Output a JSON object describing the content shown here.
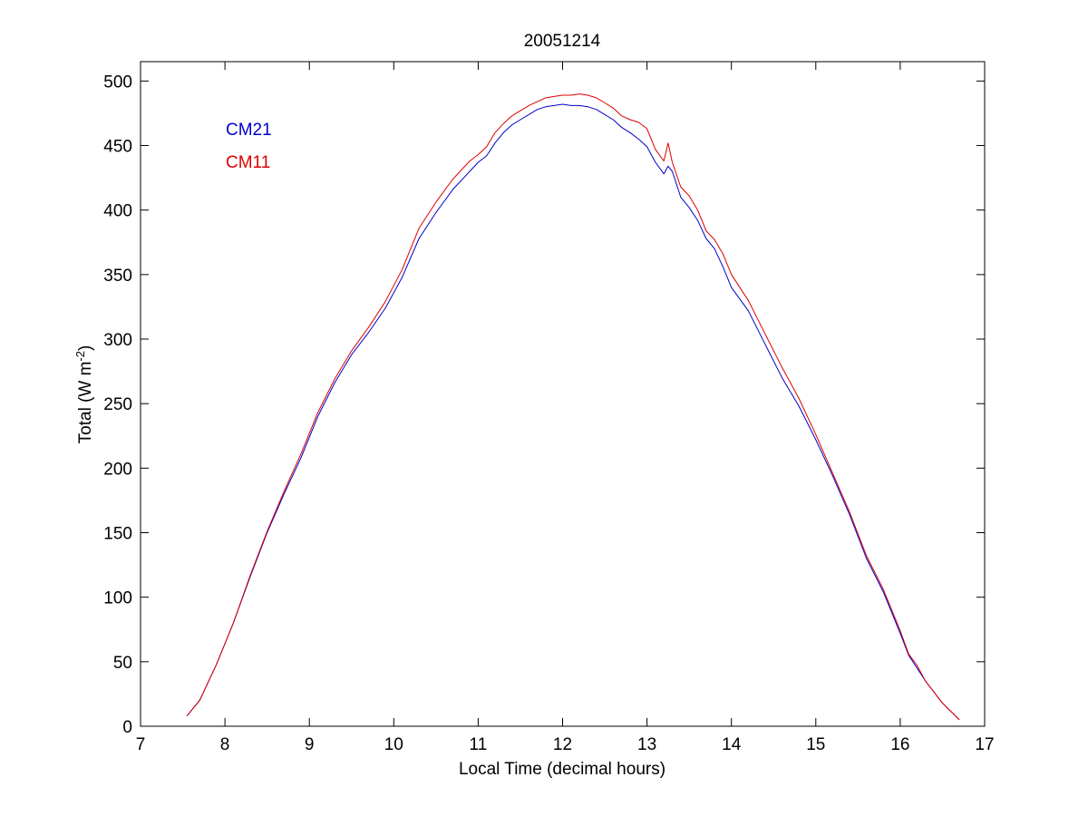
{
  "chart_data": {
    "type": "line",
    "title": "20051214",
    "xlabel": "Local Time (decimal hours)",
    "ylabel": "Total (W m",
    "ylabel_exponent": "-2",
    "ylabel_close": ")",
    "xlim": [
      7,
      17
    ],
    "ylim": [
      0,
      515
    ],
    "x_ticks": [
      7,
      8,
      9,
      10,
      11,
      12,
      13,
      14,
      15,
      16,
      17
    ],
    "y_ticks": [
      0,
      50,
      100,
      150,
      200,
      250,
      300,
      350,
      400,
      450,
      500
    ],
    "grid": false,
    "legend_position": "top-left",
    "series": [
      {
        "name": "CM21",
        "color": "#0000cc",
        "x": [
          7.55,
          7.7,
          7.9,
          8.1,
          8.3,
          8.5,
          8.7,
          8.9,
          9.1,
          9.3,
          9.5,
          9.7,
          9.9,
          10.1,
          10.3,
          10.5,
          10.7,
          10.9,
          11.0,
          11.1,
          11.2,
          11.3,
          11.4,
          11.5,
          11.6,
          11.7,
          11.8,
          11.9,
          12.0,
          12.1,
          12.2,
          12.3,
          12.4,
          12.5,
          12.6,
          12.7,
          12.8,
          12.9,
          13.0,
          13.1,
          13.2,
          13.25,
          13.3,
          13.4,
          13.5,
          13.6,
          13.7,
          13.8,
          13.9,
          14.0,
          14.2,
          14.4,
          14.6,
          14.8,
          15.0,
          15.2,
          15.4,
          15.6,
          15.8,
          16.0,
          16.1,
          16.2,
          16.3,
          16.5,
          16.7
        ],
        "y": [
          8,
          20,
          48,
          80,
          116,
          150,
          180,
          208,
          240,
          266,
          288,
          305,
          324,
          348,
          378,
          398,
          416,
          430,
          437,
          442,
          452,
          460,
          466,
          470,
          474,
          478,
          480,
          481,
          482,
          481,
          481,
          480,
          478,
          474,
          470,
          464,
          460,
          455,
          449,
          437,
          428,
          434,
          430,
          410,
          402,
          392,
          378,
          370,
          356,
          340,
          322,
          296,
          270,
          248,
          222,
          194,
          164,
          130,
          104,
          72,
          55,
          45,
          35,
          18,
          5
        ]
      },
      {
        "name": "CM11",
        "color": "#dd0000",
        "x": [
          7.55,
          7.7,
          7.9,
          8.1,
          8.3,
          8.5,
          8.7,
          8.9,
          9.1,
          9.3,
          9.5,
          9.7,
          9.9,
          10.1,
          10.3,
          10.5,
          10.7,
          10.9,
          11.0,
          11.1,
          11.2,
          11.3,
          11.4,
          11.5,
          11.6,
          11.7,
          11.8,
          11.9,
          12.0,
          12.1,
          12.2,
          12.3,
          12.4,
          12.5,
          12.6,
          12.7,
          12.8,
          12.9,
          13.0,
          13.1,
          13.2,
          13.25,
          13.3,
          13.4,
          13.5,
          13.6,
          13.7,
          13.8,
          13.9,
          14.0,
          14.2,
          14.4,
          14.6,
          14.8,
          15.0,
          15.2,
          15.4,
          15.6,
          15.8,
          16.0,
          16.1,
          16.2,
          16.3,
          16.5,
          16.7
        ],
        "y": [
          8,
          20,
          48,
          80,
          117,
          151,
          182,
          211,
          243,
          269,
          291,
          309,
          329,
          354,
          386,
          406,
          424,
          438,
          443,
          449,
          460,
          467,
          473,
          477,
          481,
          484,
          487,
          488,
          489,
          489,
          490,
          489,
          487,
          483,
          479,
          473,
          470,
          468,
          463,
          447,
          438,
          452,
          437,
          418,
          411,
          400,
          384,
          377,
          366,
          350,
          330,
          304,
          278,
          254,
          226,
          196,
          166,
          132,
          106,
          74,
          56,
          47,
          35,
          18,
          5
        ]
      }
    ]
  }
}
